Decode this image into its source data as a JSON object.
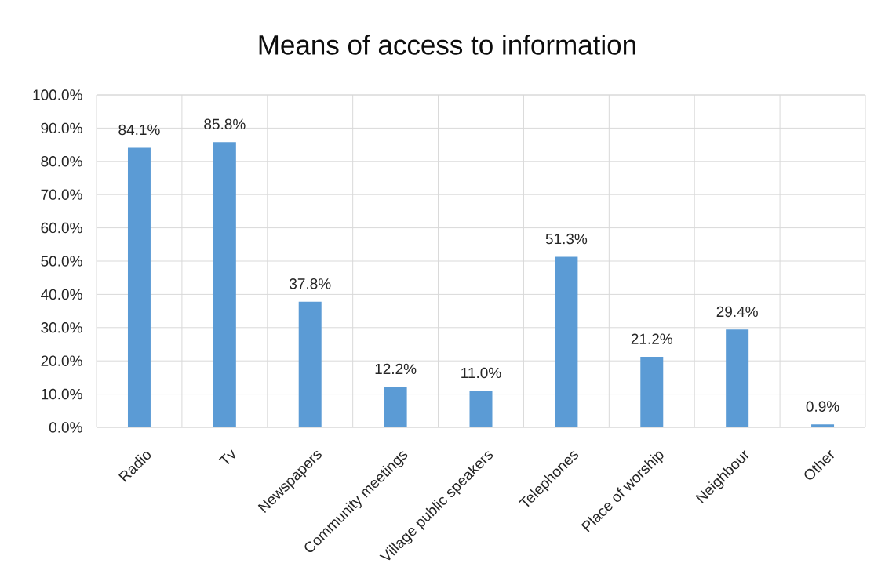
{
  "chart_data": {
    "type": "bar",
    "title": "Means of access to information",
    "categories": [
      "Radio",
      "Tv",
      "Newspapers",
      "Community meetings",
      "Village public speakers",
      "Telephones",
      "Place of worship",
      "Neighbour",
      "Other"
    ],
    "values": [
      84.1,
      85.8,
      37.8,
      12.2,
      11.0,
      51.3,
      21.2,
      29.4,
      0.9
    ],
    "value_labels": [
      "84.1%",
      "85.8%",
      "37.8%",
      "12.2%",
      "11.0%",
      "51.3%",
      "21.2%",
      "29.4%",
      "0.9%"
    ],
    "color": "#5b9bd5",
    "ylim": [
      0,
      100
    ],
    "yticks": [
      {
        "value": 0,
        "label": "0.0%"
      },
      {
        "value": 10,
        "label": "10.0%"
      },
      {
        "value": 20,
        "label": "20.0%"
      },
      {
        "value": 30,
        "label": "30.0%"
      },
      {
        "value": 40,
        "label": "40.0%"
      },
      {
        "value": 50,
        "label": "50.0%"
      },
      {
        "value": 60,
        "label": "60.0%"
      },
      {
        "value": 70,
        "label": "70.0%"
      },
      {
        "value": 80,
        "label": "80.0%"
      },
      {
        "value": 90,
        "label": "90.0%"
      },
      {
        "value": 100,
        "label": "100.0%"
      }
    ],
    "grid": true
  }
}
